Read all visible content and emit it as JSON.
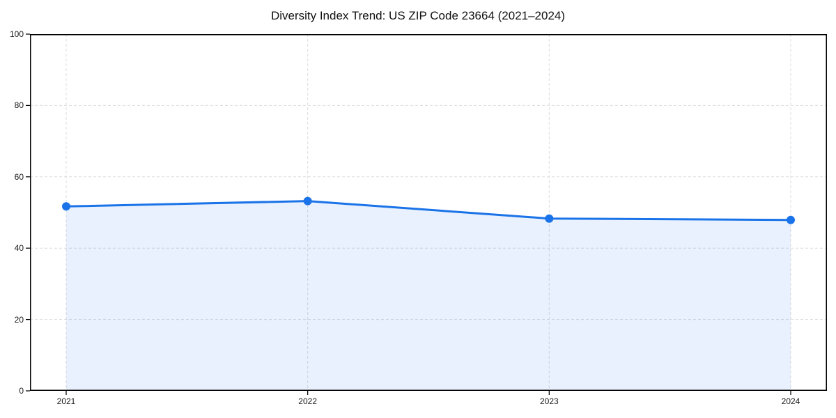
{
  "chart_data": {
    "type": "area",
    "title": "Diversity Index Trend: US ZIP Code 23664 (2021–2024)",
    "categories": [
      "2021",
      "2022",
      "2023",
      "2024"
    ],
    "values": [
      51.7,
      53.2,
      48.3,
      47.9
    ],
    "xlabel": "",
    "ylabel": "",
    "ylim": [
      0,
      100
    ],
    "yticks": [
      0,
      20,
      40,
      60,
      80,
      100
    ],
    "grid": true,
    "legend": "none",
    "line_color": "#1a73e8",
    "marker_color": "#1a73e8",
    "fill_color": "rgba(26,115,232,0.10)",
    "grid_color": "#dcdcdc",
    "axis_color": "#000000",
    "tick_label_color": "#1a1a1a",
    "background_color": "#ffffff"
  }
}
